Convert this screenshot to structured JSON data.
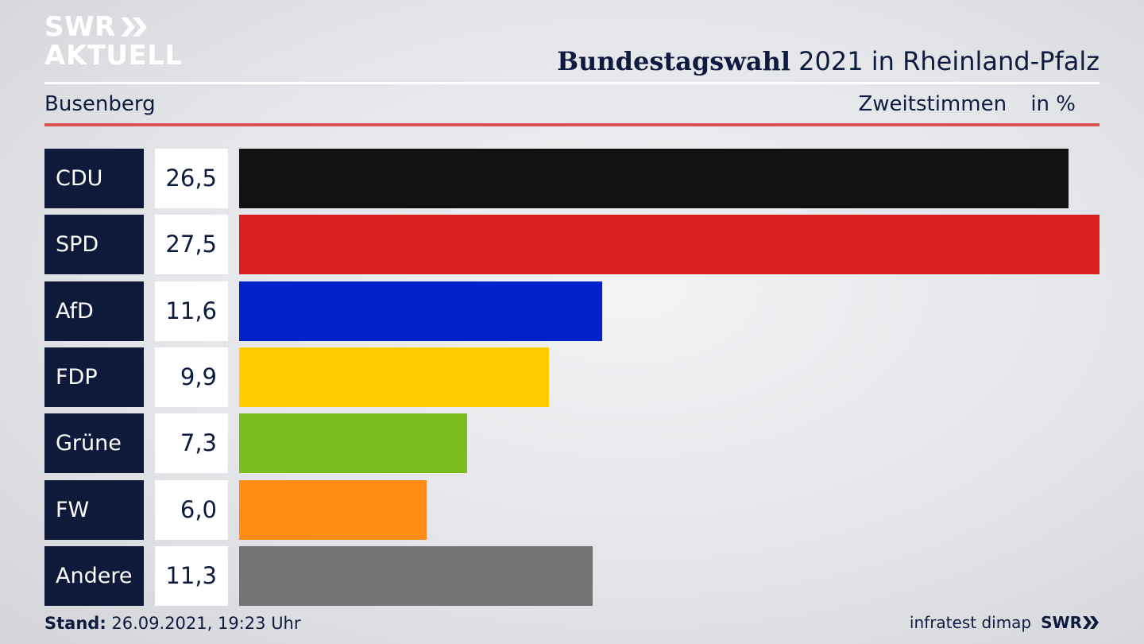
{
  "brand": {
    "line1": "SWR",
    "line2": "AKTUELL",
    "chevron_icon": "double-chevron-icon"
  },
  "header": {
    "title_bold": "Bundestagswahl",
    "title_rest": "2021 in Rheinland-Pfalz",
    "region": "Busenberg",
    "measure": "Zweitstimmen",
    "unit": "in %"
  },
  "chart_data": {
    "type": "bar",
    "orientation": "horizontal",
    "categories": [
      "CDU",
      "SPD",
      "AfD",
      "FDP",
      "Grüne",
      "FW",
      "Andere"
    ],
    "values": [
      26.5,
      27.5,
      11.6,
      9.9,
      7.3,
      6.0,
      11.3
    ],
    "labels": [
      "26,5",
      "27,5",
      "11,6",
      "9,9",
      "7,3",
      "6,0",
      "11,3"
    ],
    "colors": [
      "#111111",
      "#d91f1f",
      "#0022c8",
      "#ffcc00",
      "#78be1e",
      "#ff8c17",
      "#747474"
    ],
    "xlim": [
      0,
      27.5
    ]
  },
  "footer": {
    "stand_label": "Stand:",
    "stand_value": "26.09.2021, 19:23 Uhr",
    "source": "infratest dimap",
    "brand": "SWR"
  }
}
